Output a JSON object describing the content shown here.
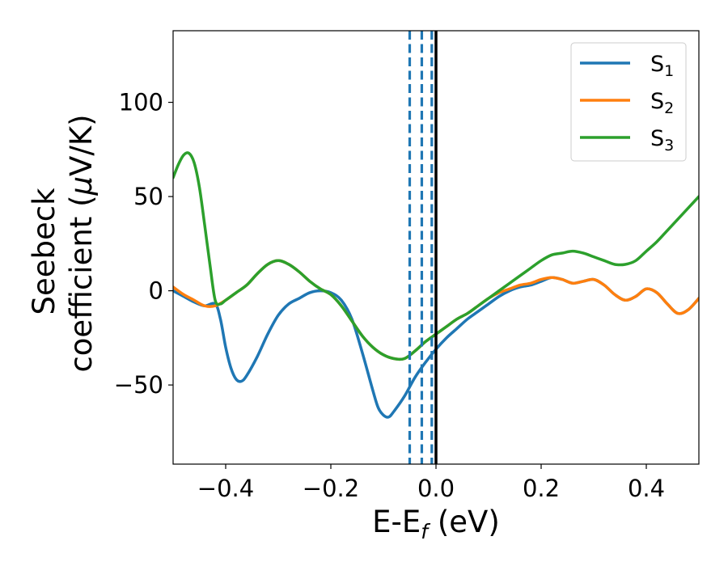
{
  "chart_data": {
    "type": "line",
    "title": "",
    "xlabel": {
      "base": "E-E",
      "sub": "f",
      "suffix": " (eV)"
    },
    "ylabel": {
      "line1": "Seebeck",
      "line2_pre": "coefficient  (",
      "mu": "μ",
      "line2_post": "V/K)"
    },
    "xlim": [
      -0.5,
      0.5
    ],
    "ylim": [
      -92,
      138
    ],
    "xticks": [
      -0.4,
      -0.2,
      0.0,
      0.2,
      0.4
    ],
    "xtick_labels": [
      "−0.4",
      "−0.2",
      "0.0",
      "0.2",
      "0.4"
    ],
    "yticks": [
      -50,
      0,
      50,
      100
    ],
    "ytick_labels": [
      "−50",
      "0",
      "50",
      "100"
    ],
    "grid": false,
    "legend_position": "top-right",
    "series": [
      {
        "name": "S",
        "sub": "1",
        "color": "#1f77b4",
        "points": [
          [
            -0.5,
            0
          ],
          [
            -0.48,
            -3
          ],
          [
            -0.46,
            -6
          ],
          [
            -0.44,
            -8
          ],
          [
            -0.42,
            -7
          ],
          [
            -0.41,
            -15
          ],
          [
            -0.4,
            -30
          ],
          [
            -0.39,
            -41
          ],
          [
            -0.38,
            -47
          ],
          [
            -0.37,
            -48
          ],
          [
            -0.36,
            -45
          ],
          [
            -0.34,
            -35
          ],
          [
            -0.32,
            -23
          ],
          [
            -0.3,
            -13
          ],
          [
            -0.28,
            -7
          ],
          [
            -0.26,
            -4
          ],
          [
            -0.24,
            -1
          ],
          [
            -0.22,
            0
          ],
          [
            -0.2,
            -1
          ],
          [
            -0.18,
            -5
          ],
          [
            -0.16,
            -15
          ],
          [
            -0.14,
            -33
          ],
          [
            -0.12,
            -53
          ],
          [
            -0.11,
            -62
          ],
          [
            -0.1,
            -66
          ],
          [
            -0.09,
            -67
          ],
          [
            -0.08,
            -64
          ],
          [
            -0.06,
            -56
          ],
          [
            -0.04,
            -46
          ],
          [
            -0.02,
            -38
          ],
          [
            0.0,
            -31
          ],
          [
            0.02,
            -25
          ],
          [
            0.04,
            -20
          ],
          [
            0.06,
            -15
          ],
          [
            0.08,
            -11
          ],
          [
            0.1,
            -7
          ],
          [
            0.12,
            -3
          ],
          [
            0.14,
            0
          ],
          [
            0.16,
            2
          ],
          [
            0.18,
            3
          ],
          [
            0.2,
            5
          ],
          [
            0.22,
            7
          ],
          [
            0.24,
            6
          ],
          [
            0.26,
            4
          ],
          [
            0.28,
            5
          ],
          [
            0.3,
            6
          ],
          [
            0.32,
            3
          ],
          [
            0.34,
            -2
          ],
          [
            0.36,
            -5
          ],
          [
            0.38,
            -3
          ],
          [
            0.4,
            1
          ],
          [
            0.42,
            -1
          ],
          [
            0.44,
            -7
          ],
          [
            0.46,
            -12
          ],
          [
            0.48,
            -10
          ],
          [
            0.5,
            -4
          ]
        ]
      },
      {
        "name": "S",
        "sub": "2",
        "color": "#ff7f0e",
        "points": [
          [
            -0.5,
            2
          ],
          [
            -0.48,
            -2
          ],
          [
            -0.46,
            -5
          ],
          [
            -0.44,
            -8
          ],
          [
            -0.42,
            -8
          ],
          [
            -0.4,
            -5
          ],
          [
            -0.38,
            -1
          ],
          [
            -0.36,
            3
          ],
          [
            -0.34,
            9
          ],
          [
            -0.32,
            14
          ],
          [
            -0.3,
            16
          ],
          [
            -0.28,
            14
          ],
          [
            -0.26,
            10
          ],
          [
            -0.24,
            5
          ],
          [
            -0.22,
            1
          ],
          [
            -0.2,
            -2
          ],
          [
            -0.18,
            -8
          ],
          [
            -0.16,
            -16
          ],
          [
            -0.14,
            -24
          ],
          [
            -0.12,
            -30
          ],
          [
            -0.1,
            -34
          ],
          [
            -0.08,
            -36
          ],
          [
            -0.06,
            -36
          ],
          [
            -0.04,
            -32
          ],
          [
            -0.02,
            -27
          ],
          [
            0.0,
            -23
          ],
          [
            0.02,
            -19
          ],
          [
            0.04,
            -15
          ],
          [
            0.06,
            -12
          ],
          [
            0.08,
            -8
          ],
          [
            0.1,
            -4
          ],
          [
            0.12,
            -1
          ],
          [
            0.14,
            1
          ],
          [
            0.16,
            3
          ],
          [
            0.18,
            4
          ],
          [
            0.2,
            6
          ],
          [
            0.22,
            7
          ],
          [
            0.24,
            6
          ],
          [
            0.26,
            4
          ],
          [
            0.28,
            5
          ],
          [
            0.3,
            6
          ],
          [
            0.32,
            3
          ],
          [
            0.34,
            -2
          ],
          [
            0.36,
            -5
          ],
          [
            0.38,
            -3
          ],
          [
            0.4,
            1
          ],
          [
            0.42,
            -1
          ],
          [
            0.44,
            -7
          ],
          [
            0.46,
            -12
          ],
          [
            0.48,
            -10
          ],
          [
            0.5,
            -4
          ]
        ]
      },
      {
        "name": "S",
        "sub": "3",
        "color": "#2ca02c",
        "points": [
          [
            -0.5,
            60
          ],
          [
            -0.49,
            67
          ],
          [
            -0.48,
            72
          ],
          [
            -0.47,
            73
          ],
          [
            -0.46,
            68
          ],
          [
            -0.45,
            55
          ],
          [
            -0.44,
            35
          ],
          [
            -0.43,
            14
          ],
          [
            -0.42,
            -5
          ],
          [
            -0.41,
            -7
          ],
          [
            -0.4,
            -5
          ],
          [
            -0.38,
            -1
          ],
          [
            -0.36,
            3
          ],
          [
            -0.34,
            9
          ],
          [
            -0.32,
            14
          ],
          [
            -0.3,
            16
          ],
          [
            -0.28,
            14
          ],
          [
            -0.26,
            10
          ],
          [
            -0.24,
            5
          ],
          [
            -0.22,
            1
          ],
          [
            -0.2,
            -2
          ],
          [
            -0.18,
            -8
          ],
          [
            -0.16,
            -16
          ],
          [
            -0.14,
            -24
          ],
          [
            -0.12,
            -30
          ],
          [
            -0.1,
            -34
          ],
          [
            -0.08,
            -36
          ],
          [
            -0.06,
            -36
          ],
          [
            -0.04,
            -32
          ],
          [
            -0.02,
            -27
          ],
          [
            0.0,
            -23
          ],
          [
            0.02,
            -19
          ],
          [
            0.04,
            -15
          ],
          [
            0.06,
            -12
          ],
          [
            0.08,
            -8
          ],
          [
            0.1,
            -4
          ],
          [
            0.12,
            0
          ],
          [
            0.14,
            4
          ],
          [
            0.16,
            8
          ],
          [
            0.18,
            12
          ],
          [
            0.2,
            16
          ],
          [
            0.22,
            19
          ],
          [
            0.24,
            20
          ],
          [
            0.26,
            21
          ],
          [
            0.28,
            20
          ],
          [
            0.3,
            18
          ],
          [
            0.32,
            16
          ],
          [
            0.34,
            14
          ],
          [
            0.36,
            14
          ],
          [
            0.38,
            16
          ],
          [
            0.4,
            21
          ],
          [
            0.42,
            26
          ],
          [
            0.44,
            32
          ],
          [
            0.46,
            38
          ],
          [
            0.48,
            44
          ],
          [
            0.5,
            50
          ]
        ]
      }
    ],
    "vlines": [
      {
        "x": -0.05,
        "color": "#1f77b4",
        "style": "dashed"
      },
      {
        "x": -0.027,
        "color": "#1f77b4",
        "style": "dashed"
      },
      {
        "x": -0.008,
        "color": "#1f77b4",
        "style": "dashed"
      },
      {
        "x": 0.0,
        "color": "#000000",
        "style": "solid"
      }
    ]
  }
}
